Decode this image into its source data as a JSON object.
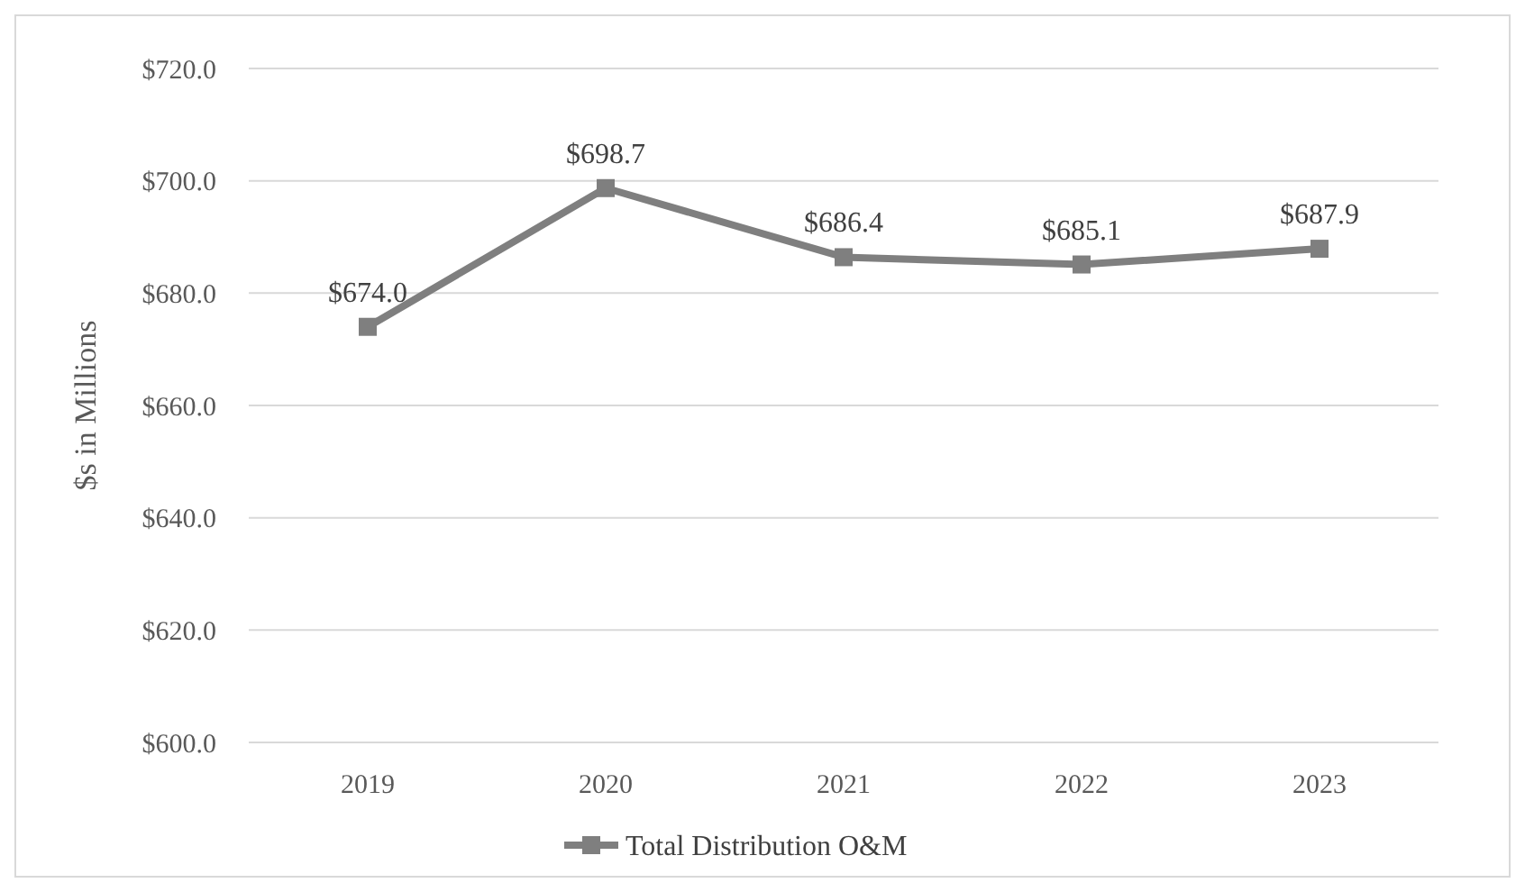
{
  "chart_data": {
    "type": "line",
    "ylabel": "$s in Millions",
    "categories": [
      "2019",
      "2020",
      "2021",
      "2022",
      "2023"
    ],
    "series": [
      {
        "name": "Total Distribution O&M",
        "color": "#7f7f7f",
        "values": [
          674.0,
          698.7,
          686.4,
          685.1,
          687.9
        ],
        "value_labels": [
          "$674.0",
          "$698.7",
          "$686.4",
          "$685.1",
          "$687.9"
        ]
      }
    ],
    "ylim": [
      600,
      720
    ],
    "yticks": [
      {
        "value": 600,
        "label": "$600.0"
      },
      {
        "value": 620,
        "label": "$620.0"
      },
      {
        "value": 640,
        "label": "$640.0"
      },
      {
        "value": 660,
        "label": "$660.0"
      },
      {
        "value": 680,
        "label": "$680.0"
      },
      {
        "value": 700,
        "label": "$700.0"
      },
      {
        "value": 720,
        "label": "$720.0"
      }
    ],
    "grid": "y",
    "legend": "bottom",
    "marker": "square",
    "line_style": "solid"
  }
}
